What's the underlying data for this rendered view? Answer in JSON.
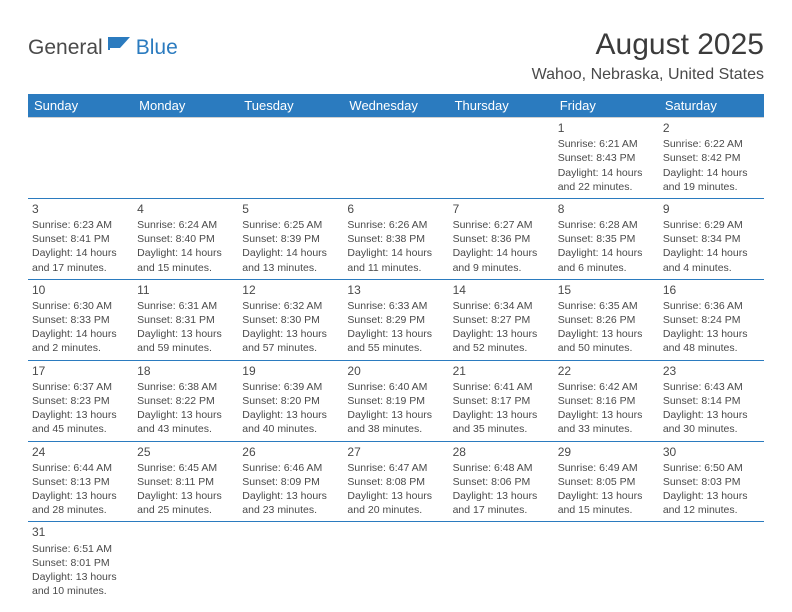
{
  "logo": {
    "part1": "General",
    "part2": "Blue"
  },
  "title": "August 2025",
  "location": "Wahoo, Nebraska, United States",
  "weekdays": [
    "Sunday",
    "Monday",
    "Tuesday",
    "Wednesday",
    "Thursday",
    "Friday",
    "Saturday"
  ],
  "colors": {
    "header_bg": "#2b7bbf",
    "text": "#4a4a4a",
    "rule": "#2b7bbf"
  },
  "font": "Arial",
  "startWeekday": 5,
  "daysInMonth": 31,
  "days": {
    "1": {
      "sunrise": "6:21 AM",
      "sunset": "8:43 PM",
      "daylight": "14 hours and 22 minutes."
    },
    "2": {
      "sunrise": "6:22 AM",
      "sunset": "8:42 PM",
      "daylight": "14 hours and 19 minutes."
    },
    "3": {
      "sunrise": "6:23 AM",
      "sunset": "8:41 PM",
      "daylight": "14 hours and 17 minutes."
    },
    "4": {
      "sunrise": "6:24 AM",
      "sunset": "8:40 PM",
      "daylight": "14 hours and 15 minutes."
    },
    "5": {
      "sunrise": "6:25 AM",
      "sunset": "8:39 PM",
      "daylight": "14 hours and 13 minutes."
    },
    "6": {
      "sunrise": "6:26 AM",
      "sunset": "8:38 PM",
      "daylight": "14 hours and 11 minutes."
    },
    "7": {
      "sunrise": "6:27 AM",
      "sunset": "8:36 PM",
      "daylight": "14 hours and 9 minutes."
    },
    "8": {
      "sunrise": "6:28 AM",
      "sunset": "8:35 PM",
      "daylight": "14 hours and 6 minutes."
    },
    "9": {
      "sunrise": "6:29 AM",
      "sunset": "8:34 PM",
      "daylight": "14 hours and 4 minutes."
    },
    "10": {
      "sunrise": "6:30 AM",
      "sunset": "8:33 PM",
      "daylight": "14 hours and 2 minutes."
    },
    "11": {
      "sunrise": "6:31 AM",
      "sunset": "8:31 PM",
      "daylight": "13 hours and 59 minutes."
    },
    "12": {
      "sunrise": "6:32 AM",
      "sunset": "8:30 PM",
      "daylight": "13 hours and 57 minutes."
    },
    "13": {
      "sunrise": "6:33 AM",
      "sunset": "8:29 PM",
      "daylight": "13 hours and 55 minutes."
    },
    "14": {
      "sunrise": "6:34 AM",
      "sunset": "8:27 PM",
      "daylight": "13 hours and 52 minutes."
    },
    "15": {
      "sunrise": "6:35 AM",
      "sunset": "8:26 PM",
      "daylight": "13 hours and 50 minutes."
    },
    "16": {
      "sunrise": "6:36 AM",
      "sunset": "8:24 PM",
      "daylight": "13 hours and 48 minutes."
    },
    "17": {
      "sunrise": "6:37 AM",
      "sunset": "8:23 PM",
      "daylight": "13 hours and 45 minutes."
    },
    "18": {
      "sunrise": "6:38 AM",
      "sunset": "8:22 PM",
      "daylight": "13 hours and 43 minutes."
    },
    "19": {
      "sunrise": "6:39 AM",
      "sunset": "8:20 PM",
      "daylight": "13 hours and 40 minutes."
    },
    "20": {
      "sunrise": "6:40 AM",
      "sunset": "8:19 PM",
      "daylight": "13 hours and 38 minutes."
    },
    "21": {
      "sunrise": "6:41 AM",
      "sunset": "8:17 PM",
      "daylight": "13 hours and 35 minutes."
    },
    "22": {
      "sunrise": "6:42 AM",
      "sunset": "8:16 PM",
      "daylight": "13 hours and 33 minutes."
    },
    "23": {
      "sunrise": "6:43 AM",
      "sunset": "8:14 PM",
      "daylight": "13 hours and 30 minutes."
    },
    "24": {
      "sunrise": "6:44 AM",
      "sunset": "8:13 PM",
      "daylight": "13 hours and 28 minutes."
    },
    "25": {
      "sunrise": "6:45 AM",
      "sunset": "8:11 PM",
      "daylight": "13 hours and 25 minutes."
    },
    "26": {
      "sunrise": "6:46 AM",
      "sunset": "8:09 PM",
      "daylight": "13 hours and 23 minutes."
    },
    "27": {
      "sunrise": "6:47 AM",
      "sunset": "8:08 PM",
      "daylight": "13 hours and 20 minutes."
    },
    "28": {
      "sunrise": "6:48 AM",
      "sunset": "8:06 PM",
      "daylight": "13 hours and 17 minutes."
    },
    "29": {
      "sunrise": "6:49 AM",
      "sunset": "8:05 PM",
      "daylight": "13 hours and 15 minutes."
    },
    "30": {
      "sunrise": "6:50 AM",
      "sunset": "8:03 PM",
      "daylight": "13 hours and 12 minutes."
    },
    "31": {
      "sunrise": "6:51 AM",
      "sunset": "8:01 PM",
      "daylight": "13 hours and 10 minutes."
    }
  }
}
